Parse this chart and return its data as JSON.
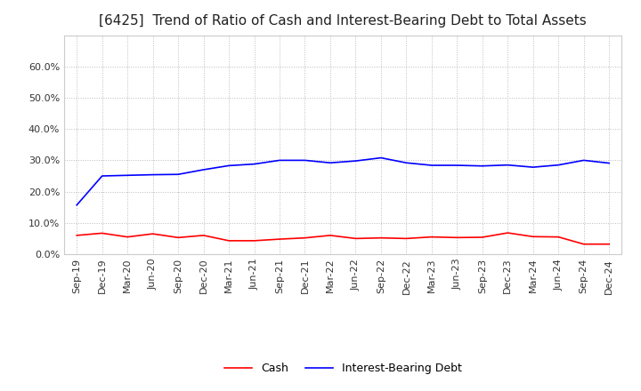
{
  "title": "[6425]  Trend of Ratio of Cash and Interest-Bearing Debt to Total Assets",
  "x_labels": [
    "Sep-19",
    "Dec-19",
    "Mar-20",
    "Jun-20",
    "Sep-20",
    "Dec-20",
    "Mar-21",
    "Jun-21",
    "Sep-21",
    "Dec-21",
    "Mar-22",
    "Jun-22",
    "Sep-22",
    "Dec-22",
    "Mar-23",
    "Jun-23",
    "Sep-23",
    "Dec-23",
    "Mar-24",
    "Jun-24",
    "Sep-24",
    "Dec-24"
  ],
  "cash": [
    0.06,
    0.067,
    0.055,
    0.065,
    0.053,
    0.06,
    0.043,
    0.043,
    0.048,
    0.052,
    0.06,
    0.05,
    0.052,
    0.05,
    0.055,
    0.053,
    0.054,
    0.068,
    0.056,
    0.055,
    0.032,
    0.032
  ],
  "ibd": [
    0.157,
    0.25,
    0.252,
    0.254,
    0.255,
    0.27,
    0.283,
    0.288,
    0.3,
    0.3,
    0.292,
    0.298,
    0.308,
    0.292,
    0.284,
    0.284,
    0.282,
    0.285,
    0.278,
    0.285,
    0.3,
    0.291
  ],
  "cash_color": "#FF0000",
  "ibd_color": "#0000FF",
  "background_color": "#FFFFFF",
  "grid_color": "#BBBBBB",
  "ylim": [
    0.0,
    0.7
  ],
  "yticks": [
    0.0,
    0.1,
    0.2,
    0.3,
    0.4,
    0.5,
    0.6
  ],
  "legend_cash": "Cash",
  "legend_ibd": "Interest-Bearing Debt",
  "title_fontsize": 11,
  "tick_fontsize": 8,
  "legend_fontsize": 9
}
